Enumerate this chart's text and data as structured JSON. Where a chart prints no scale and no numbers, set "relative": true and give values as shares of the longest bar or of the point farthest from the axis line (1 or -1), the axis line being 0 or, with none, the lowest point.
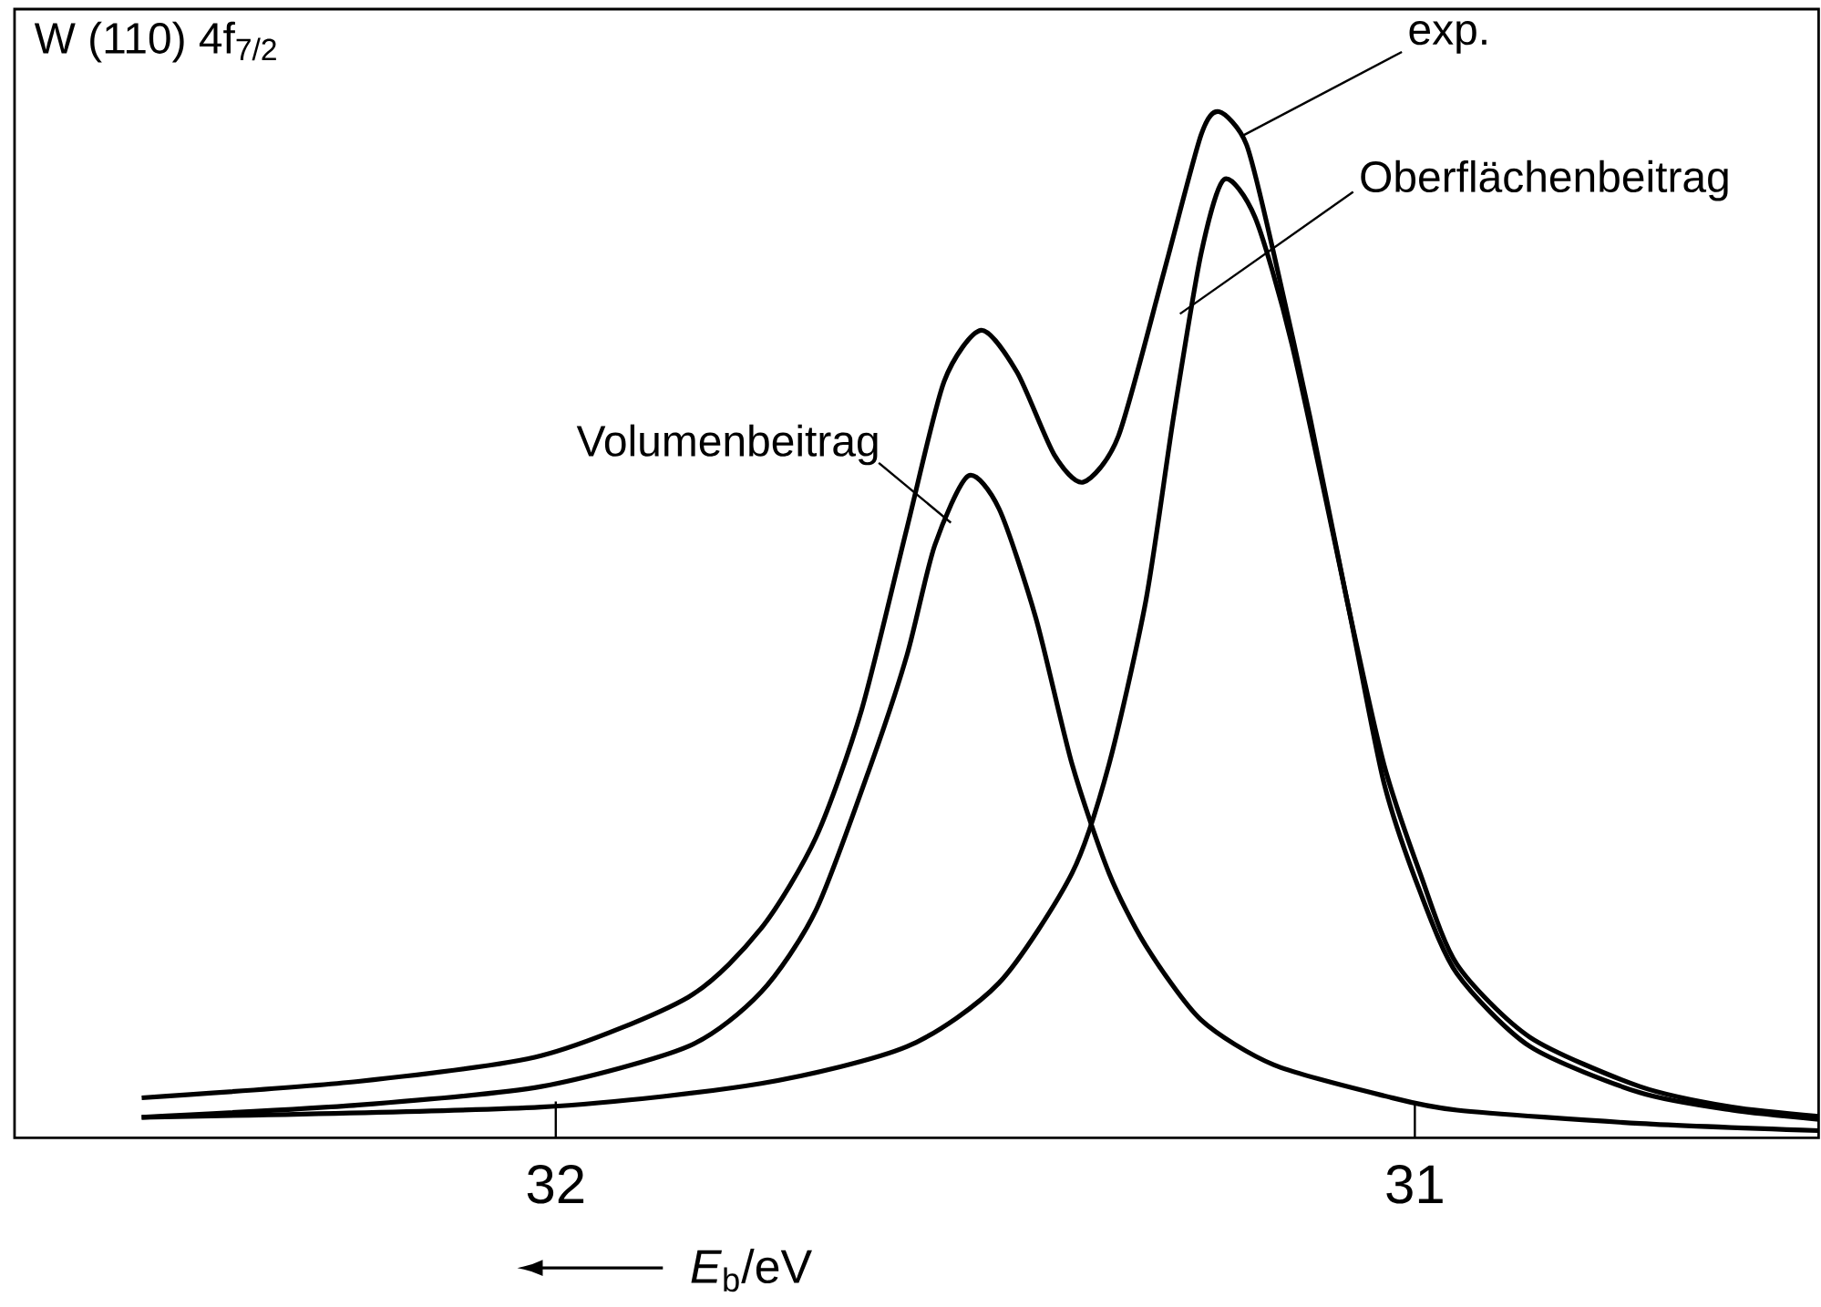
{
  "chart_data": {
    "type": "line",
    "title": "W (110) 4f$_{7/2}$",
    "xlabel": "*E*$_{b}$/eV",
    "relative": true,
    "xlim": [
      32.63,
      30.53
    ],
    "xticks": [
      32,
      31
    ],
    "series": [
      {
        "name": "exp.",
        "color": "#000000",
        "x": [
          32.482,
          32.23,
          32.017,
          31.846,
          31.761,
          31.697,
          31.644,
          31.591,
          31.548,
          31.505,
          31.463,
          31.42,
          31.386,
          31.345,
          31.292,
          31.249,
          31.228,
          31.196,
          31.164,
          31.122,
          31.079,
          31.036,
          30.994,
          30.951,
          30.866,
          30.738,
          30.631,
          30.53
        ],
        "values": [
          0.039,
          0.055,
          0.08,
          0.137,
          0.204,
          0.293,
          0.417,
          0.595,
          0.737,
          0.787,
          0.746,
          0.666,
          0.639,
          0.684,
          0.844,
          0.977,
          1.0,
          0.968,
          0.861,
          0.702,
          0.524,
          0.364,
          0.258,
          0.169,
          0.098,
          0.05,
          0.03,
          0.021
        ]
      },
      {
        "name": "Oberflächenbeitrag",
        "color": "#000000",
        "x": [
          32.482,
          32.017,
          31.761,
          31.591,
          31.484,
          31.399,
          31.356,
          31.313,
          31.281,
          31.249,
          31.222,
          31.186,
          31.143,
          31.079,
          31.036,
          30.994,
          30.951,
          30.866,
          30.738,
          30.631,
          30.53
        ],
        "values": [
          0.02,
          0.03,
          0.053,
          0.089,
          0.151,
          0.258,
          0.364,
          0.524,
          0.702,
          0.861,
          0.934,
          0.897,
          0.773,
          0.524,
          0.346,
          0.24,
          0.16,
          0.089,
          0.044,
          0.027,
          0.018
        ]
      },
      {
        "name": "Volumenbeitrag",
        "color": "#000000",
        "x": [
          32.482,
          32.23,
          32.017,
          31.846,
          31.761,
          31.697,
          31.633,
          31.591,
          31.559,
          31.52,
          31.484,
          31.441,
          31.399,
          31.356,
          31.313,
          31.249,
          31.164,
          31.036,
          30.951,
          30.738,
          30.53
        ],
        "values": [
          0.02,
          0.032,
          0.05,
          0.089,
          0.142,
          0.222,
          0.364,
          0.471,
          0.577,
          0.645,
          0.613,
          0.506,
          0.364,
          0.258,
          0.187,
          0.115,
          0.071,
          0.041,
          0.027,
          0.014,
          0.007
        ]
      }
    ]
  }
}
